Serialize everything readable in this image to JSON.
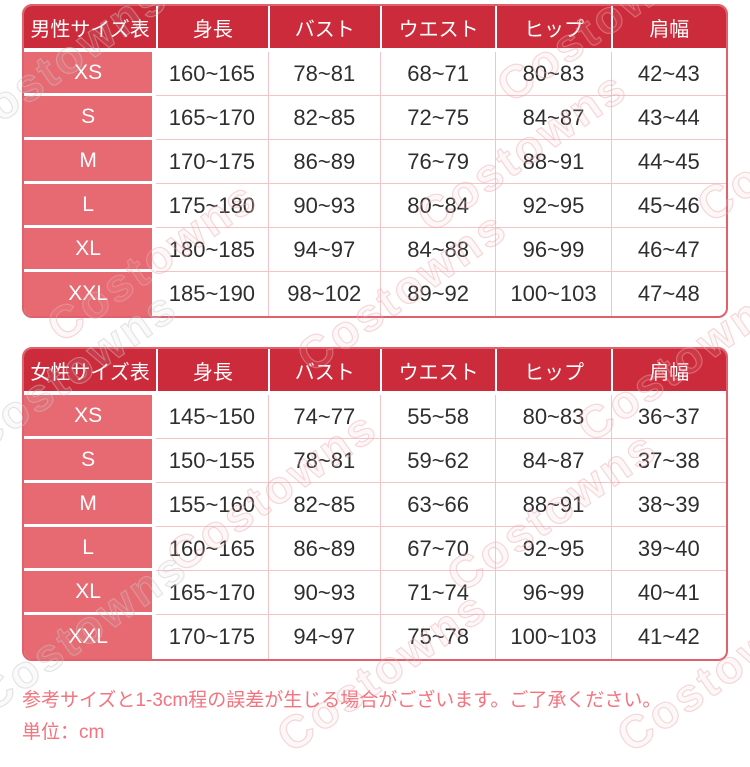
{
  "chart_data": [
    {
      "type": "table",
      "title": "男性サイズ表",
      "columns": [
        "身長",
        "バスト",
        "ウエスト",
        "ヒップ",
        "肩幅"
      ],
      "rows": [
        {
          "size": "XS",
          "values": [
            "160~165",
            "78~81",
            "68~71",
            "80~83",
            "42~43"
          ]
        },
        {
          "size": "S",
          "values": [
            "165~170",
            "82~85",
            "72~75",
            "84~87",
            "43~44"
          ]
        },
        {
          "size": "M",
          "values": [
            "170~175",
            "86~89",
            "76~79",
            "88~91",
            "44~45"
          ]
        },
        {
          "size": "L",
          "values": [
            "175~180",
            "90~93",
            "80~84",
            "92~95",
            "45~46"
          ]
        },
        {
          "size": "XL",
          "values": [
            "180~185",
            "94~97",
            "84~88",
            "96~99",
            "46~47"
          ]
        },
        {
          "size": "XXL",
          "values": [
            "185~190",
            "98~102",
            "89~92",
            "100~103",
            "47~48"
          ]
        }
      ]
    },
    {
      "type": "table",
      "title": "女性サイズ表",
      "columns": [
        "身長",
        "バスト",
        "ウエスト",
        "ヒップ",
        "肩幅"
      ],
      "rows": [
        {
          "size": "XS",
          "values": [
            "145~150",
            "74~77",
            "55~58",
            "80~83",
            "36~37"
          ]
        },
        {
          "size": "S",
          "values": [
            "150~155",
            "78~81",
            "59~62",
            "84~87",
            "37~38"
          ]
        },
        {
          "size": "M",
          "values": [
            "155~160",
            "82~85",
            "63~66",
            "88~91",
            "38~39"
          ]
        },
        {
          "size": "L",
          "values": [
            "160~165",
            "86~89",
            "67~70",
            "92~95",
            "39~40"
          ]
        },
        {
          "size": "XL",
          "values": [
            "165~170",
            "90~93",
            "71~74",
            "96~99",
            "40~41"
          ]
        },
        {
          "size": "XXL",
          "values": [
            "170~175",
            "94~97",
            "75~78",
            "100~103",
            "41~42"
          ]
        }
      ]
    }
  ],
  "notes": {
    "disclaimer": "参考サイズと1-3cm程の誤差が生じる場合がございます。ご了承ください。",
    "unit": "単位：cm"
  },
  "watermark": {
    "text": "Costowns"
  },
  "colors": {
    "header_bg": "#cb2b3a",
    "label_bg": "#e76972",
    "grid_line": "#f3c3c6",
    "border": "#e0606c",
    "note_text": "#f4737e"
  }
}
